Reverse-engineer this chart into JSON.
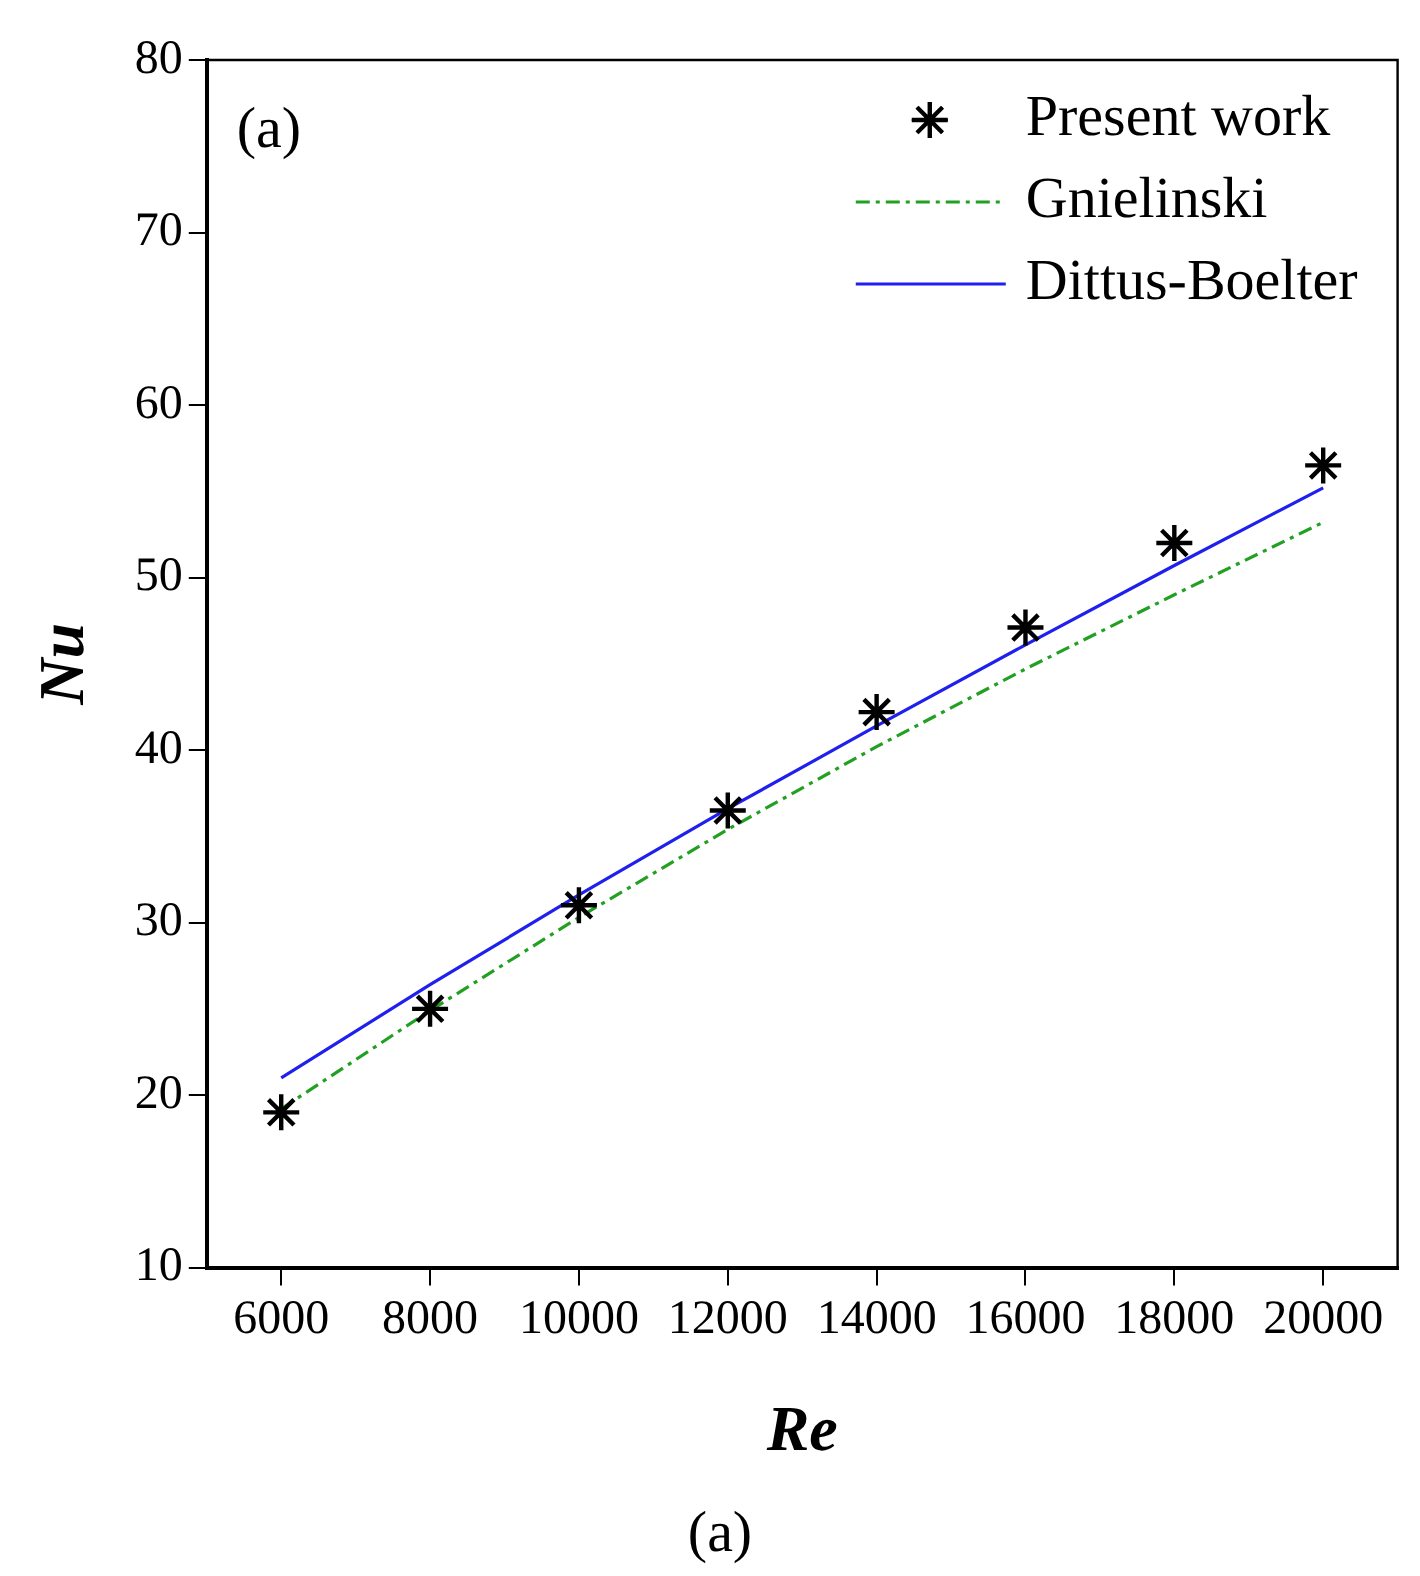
{
  "chart_data": {
    "type": "line",
    "xlabel": "Re",
    "ylabel": "Nu",
    "annotations": [
      "(a)",
      "(a)"
    ],
    "xlim": [
      5000,
      21000
    ],
    "xticks": [
      6000,
      8000,
      10000,
      12000,
      14000,
      16000,
      18000,
      20000
    ],
    "ylim": [
      10,
      80
    ],
    "yticks": [
      10,
      20,
      30,
      40,
      50,
      60,
      70,
      80
    ],
    "legend": "top right",
    "grid": false,
    "x": [
      6000,
      8000,
      10000,
      12000,
      14000,
      16000,
      18000,
      20000
    ],
    "series": [
      {
        "name": "Present work",
        "type": "scatter",
        "marker": "cross",
        "color": "#000000",
        "values": [
          19,
          25,
          31,
          36.5,
          42.2,
          47.1,
          52,
          56.5
        ]
      },
      {
        "name": "Gnielinski",
        "line_style": "dashed",
        "marker": "none",
        "color": "#22a022",
        "values": [
          19.2,
          24.9,
          30.3,
          35.4,
          40.2,
          44.7,
          49,
          53.2
        ]
      },
      {
        "name": "Dittus-Boelter",
        "line_style": "solid",
        "marker": "none",
        "color": "#2020ee",
        "values": [
          21,
          26.4,
          31.6,
          36.6,
          41.4,
          46.1,
          50.7,
          55.2
        ]
      }
    ]
  }
}
